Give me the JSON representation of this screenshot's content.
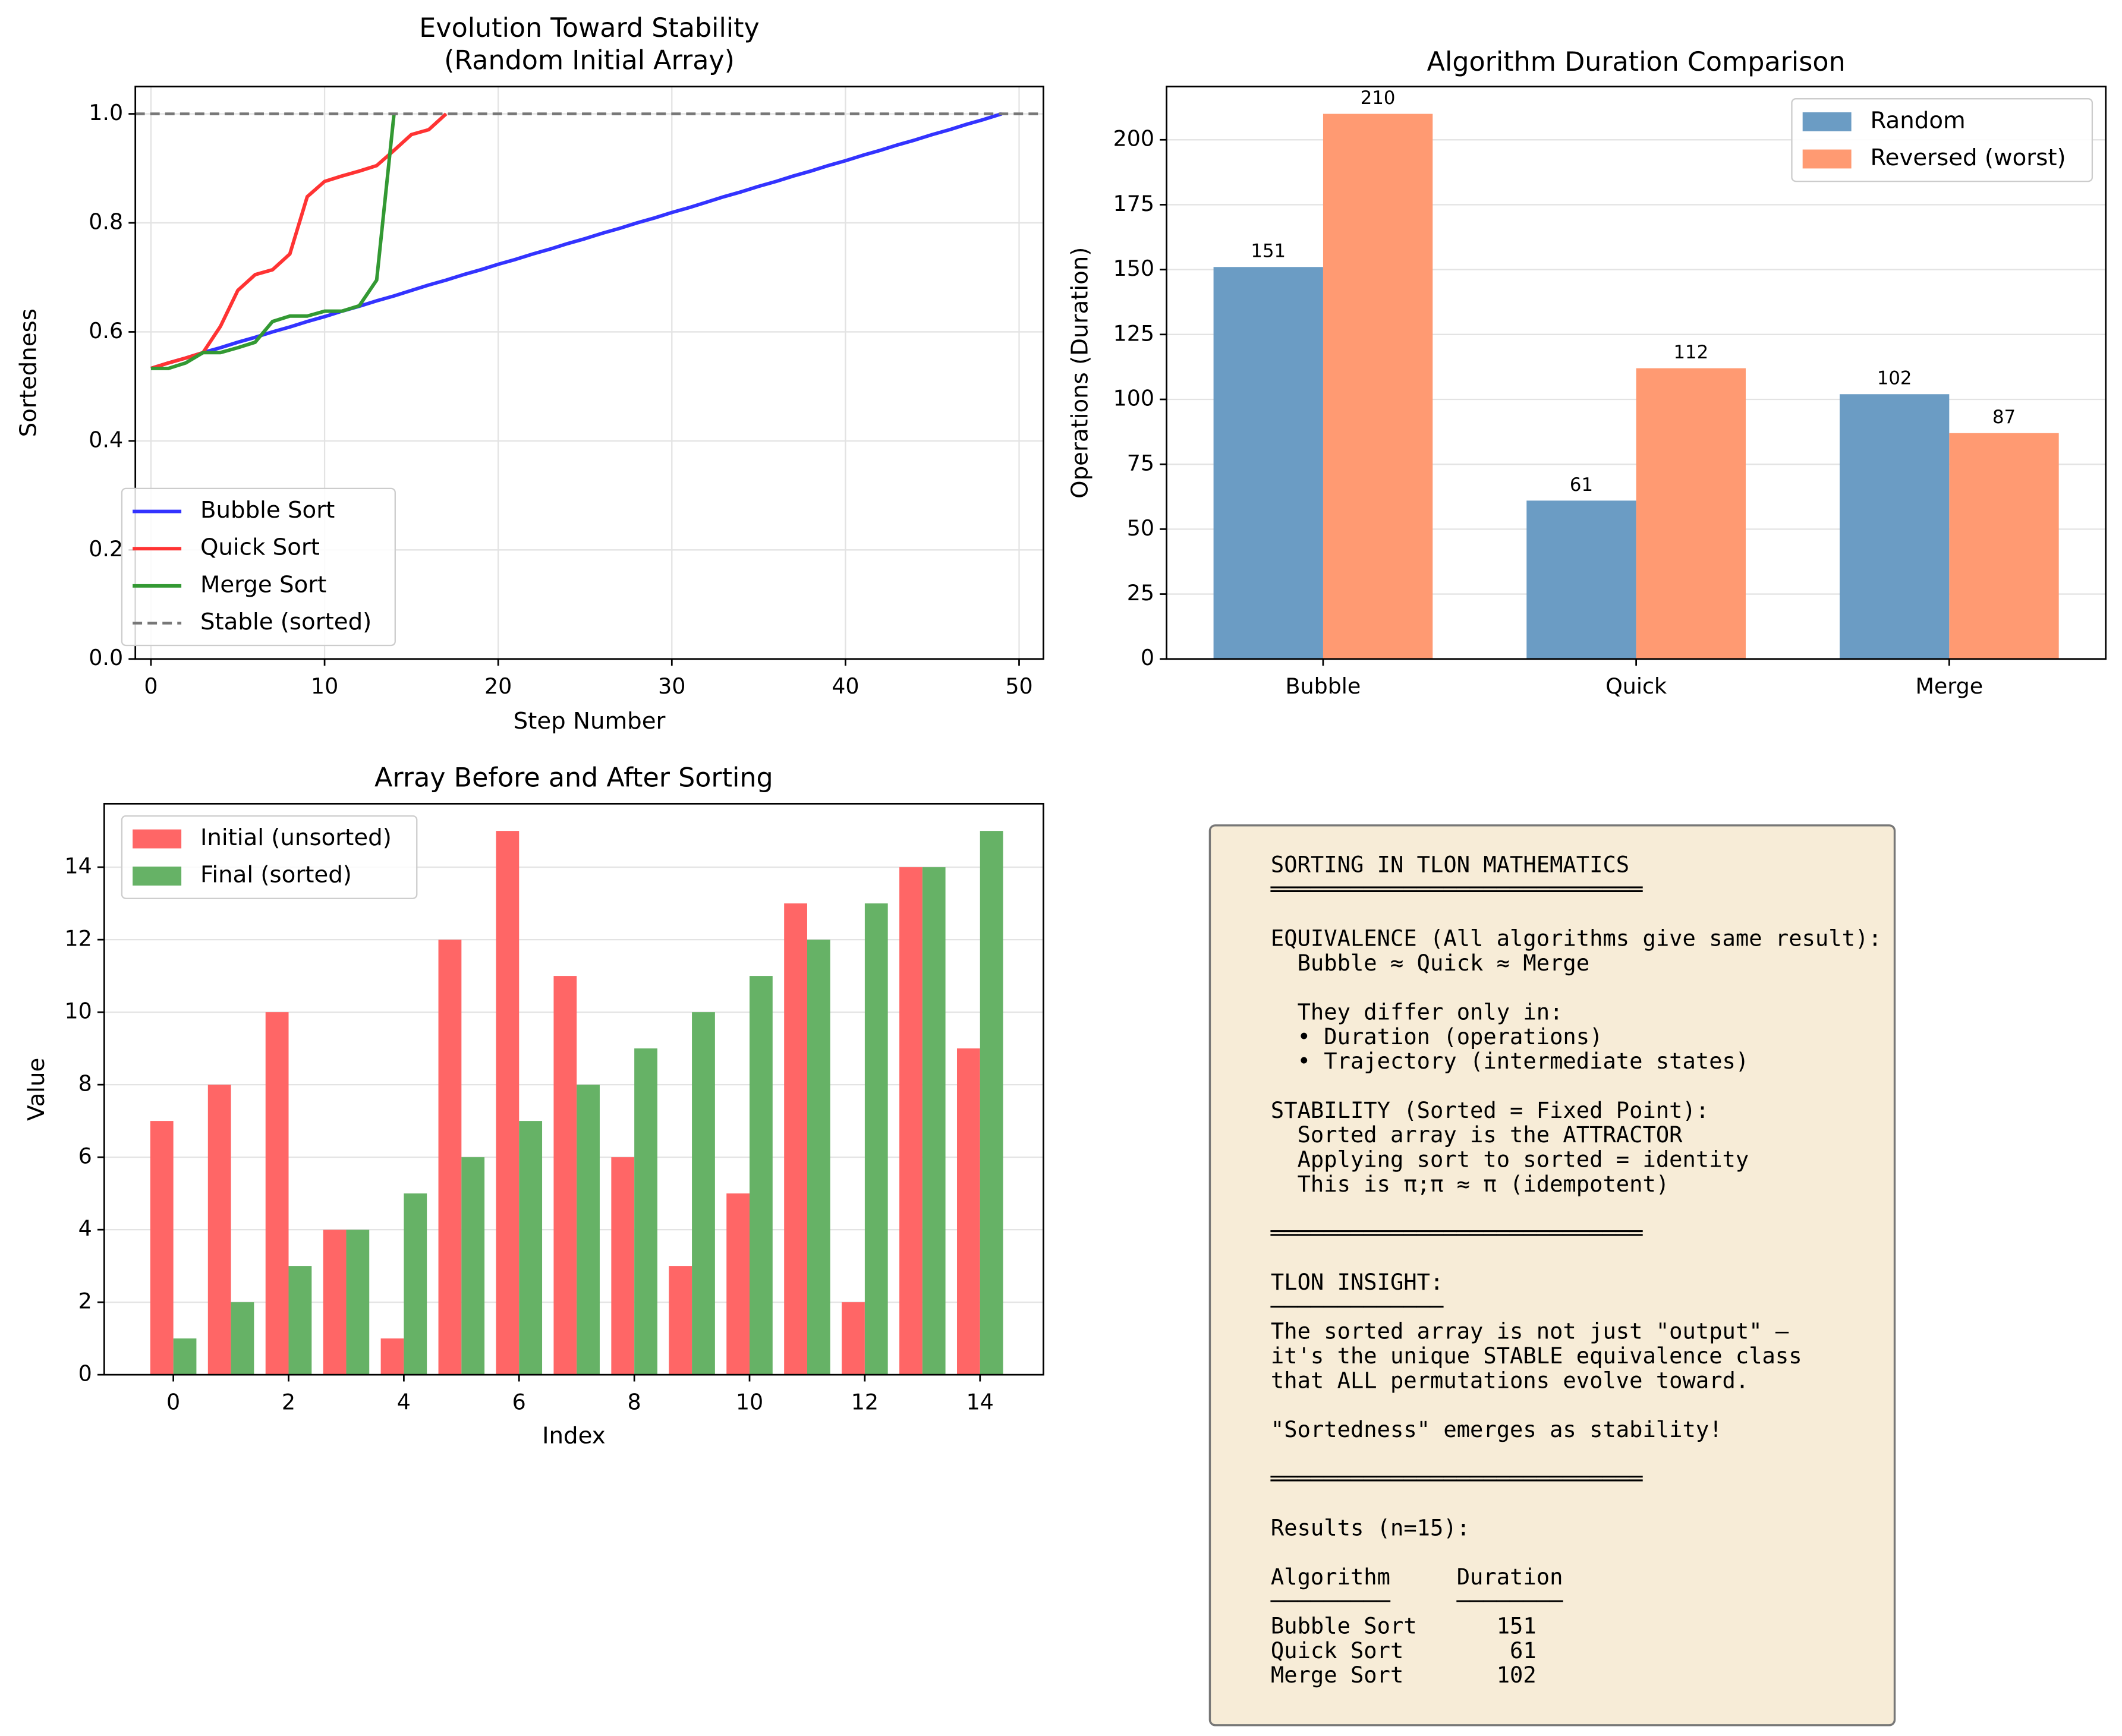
{
  "chart_data": [
    {
      "type": "line",
      "title": [
        "Evolution Toward Stability",
        "(Random Initial Array)"
      ],
      "x_label": "Step Number",
      "y_label": "Sortedness",
      "xlim": [
        -0.9,
        51.4
      ],
      "xticks": [
        0,
        10,
        20,
        30,
        40,
        50
      ],
      "ylim": [
        0,
        1.05
      ],
      "yticks": [
        {
          "value": 0,
          "label": "0.0"
        },
        0.2,
        0.4,
        0.6,
        0.8,
        {
          "value": 1,
          "label": "1.0"
        }
      ],
      "grid": "both",
      "legend": "lower left",
      "series": [
        {
          "name": "Bubble Sort",
          "color": "#3333ff",
          "x": [
            0,
            1,
            2,
            3,
            4,
            5,
            6,
            7,
            8,
            9,
            10,
            11,
            12,
            13,
            14,
            15,
            16,
            17,
            18,
            19,
            20,
            21,
            22,
            23,
            24,
            25,
            26,
            27,
            28,
            29,
            30,
            31,
            32,
            33,
            34,
            35,
            36,
            37,
            38,
            39,
            40,
            41,
            42,
            43,
            44,
            45,
            46,
            47,
            48,
            49
          ],
          "values": [
            0.533,
            0.543,
            0.552,
            0.562,
            0.571,
            0.581,
            0.59,
            0.6,
            0.609,
            0.619,
            0.628,
            0.638,
            0.647,
            0.657,
            0.666,
            0.676,
            0.686,
            0.695,
            0.705,
            0.714,
            0.724,
            0.733,
            0.743,
            0.752,
            0.762,
            0.771,
            0.781,
            0.79,
            0.8,
            0.809,
            0.819,
            0.828,
            0.838,
            0.848,
            0.857,
            0.867,
            0.876,
            0.886,
            0.895,
            0.905,
            0.914,
            0.924,
            0.933,
            0.943,
            0.952,
            0.962,
            0.971,
            0.981,
            0.99,
            1.0
          ]
        },
        {
          "name": "Quick Sort",
          "color": "#ff3333",
          "x": [
            0,
            1,
            2,
            3,
            4,
            5,
            6,
            7,
            8,
            9,
            10,
            11,
            12,
            13,
            14,
            15,
            16,
            17
          ],
          "values": [
            0.533,
            0.543,
            0.552,
            0.562,
            0.61,
            0.676,
            0.705,
            0.714,
            0.743,
            0.848,
            0.876,
            0.886,
            0.895,
            0.905,
            0.933,
            0.962,
            0.971,
            1.0
          ]
        },
        {
          "name": "Merge Sort",
          "color": "#339933",
          "x": [
            0,
            1,
            2,
            3,
            4,
            5,
            6,
            7,
            8,
            9,
            10,
            11,
            12,
            13,
            14
          ],
          "values": [
            0.533,
            0.533,
            0.543,
            0.562,
            0.562,
            0.571,
            0.581,
            0.619,
            0.629,
            0.629,
            0.638,
            0.638,
            0.648,
            0.695,
            1.0
          ]
        }
      ],
      "hline": {
        "name": "Stable (sorted)",
        "value": 1.0,
        "color": "#777777"
      }
    },
    {
      "type": "bar",
      "title": [
        "Algorithm Duration Comparison"
      ],
      "y_label": "Operations (Duration)",
      "categories": [
        "Bubble",
        "Quick",
        "Merge"
      ],
      "ylim": [
        0,
        220.5
      ],
      "yticks": [
        0,
        25,
        50,
        75,
        100,
        125,
        150,
        175,
        200
      ],
      "grid": "y",
      "legend": "upper right",
      "show_values": true,
      "series": [
        {
          "name": "Random",
          "color": "#6b9cc4",
          "values": [
            151,
            61,
            102
          ]
        },
        {
          "name": "Reversed (worst)",
          "color": "#ff9a72",
          "values": [
            210,
            112,
            87
          ]
        }
      ]
    },
    {
      "type": "bar",
      "title": [
        "Array Before and After Sorting"
      ],
      "x_label": "Index",
      "y_label": "Value",
      "x": [
        0,
        1,
        2,
        3,
        4,
        5,
        6,
        7,
        8,
        9,
        10,
        11,
        12,
        13,
        14
      ],
      "xlim": [
        -1.2,
        15.1
      ],
      "xticks": [
        0,
        2,
        4,
        6,
        8,
        10,
        12,
        14
      ],
      "ylim": [
        0,
        15.75
      ],
      "yticks": [
        0,
        2,
        4,
        6,
        8,
        10,
        12,
        14
      ],
      "grid": "y",
      "legend": "upper left",
      "series": [
        {
          "name": "Initial (unsorted)",
          "color": "#ff6666",
          "values": [
            7,
            8,
            10,
            4,
            1,
            12,
            15,
            11,
            6,
            3,
            5,
            13,
            2,
            14,
            9
          ]
        },
        {
          "name": "Final (sorted)",
          "color": "#66b266",
          "values": [
            1,
            2,
            3,
            4,
            5,
            6,
            7,
            8,
            9,
            10,
            11,
            12,
            13,
            14,
            15
          ]
        }
      ]
    }
  ],
  "text_panel": {
    "blocks": [
      [
        "SORTING IN TLON MATHEMATICS",
        "════════════════════════════"
      ],
      [
        "EQUIVALENCE (All algorithms give same result):",
        "  Bubble ≈ Quick ≈ Merge"
      ],
      [
        "  They differ only in:",
        "  • Duration (operations)",
        "  • Trajectory (intermediate states)"
      ],
      [
        "STABILITY (Sorted = Fixed Point):",
        "  Sorted array is the ATTRACTOR",
        "  Applying sort to sorted = identity",
        "  This is π;π ≈ π (idempotent)"
      ],
      [
        "════════════════════════════"
      ],
      [
        "TLON INSIGHT:",
        "─────────────",
        "The sorted array is not just \"output\" —",
        "it's the unique STABLE equivalence class",
        "that ALL permutations evolve toward."
      ],
      [
        "\"Sortedness\" emerges as stability!"
      ],
      [
        "════════════════════════════"
      ],
      [
        "Results (n=15):"
      ],
      [
        "Algorithm     Duration",
        "─────────     ────────",
        "Bubble Sort      151",
        "Quick Sort        61",
        "Merge Sort       102"
      ]
    ]
  }
}
